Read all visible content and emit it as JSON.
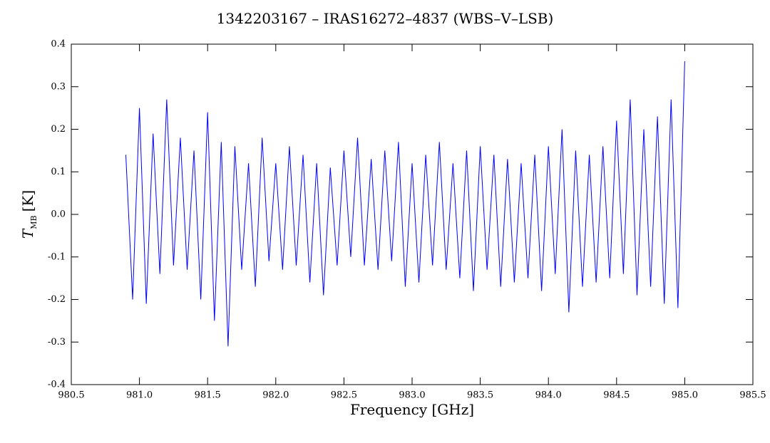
{
  "chart_data": {
    "type": "line",
    "title": "1342203167 – IRAS16272–4837 (WBS–V–LSB)",
    "x_label": "Frequency [GHz]",
    "y_label": {
      "symbol": "T",
      "subscript": "MB",
      "unit": "[K]"
    },
    "xlim": [
      980.5,
      985.5
    ],
    "xticks": [
      980.5,
      {
        "value": 981,
        "label": "981.0"
      },
      981.5,
      {
        "value": 982,
        "label": "982.0"
      },
      982.5,
      {
        "value": 983,
        "label": "983.0"
      },
      983.5,
      {
        "value": 984,
        "label": "984.0"
      },
      984.5,
      {
        "value": 985,
        "label": "985.0"
      },
      985.5
    ],
    "ylim": [
      -0.4,
      0.4
    ],
    "yticks": [
      -0.4,
      -0.3,
      -0.2,
      -0.1,
      {
        "value": 0,
        "label": "0.0"
      },
      0.1,
      0.2,
      0.3,
      0.4
    ],
    "x": [
      980.9,
      980.95,
      981.0,
      981.05,
      981.1,
      981.15,
      981.2,
      981.25,
      981.3,
      981.35,
      981.4,
      981.45,
      981.5,
      981.55,
      981.6,
      981.65,
      981.7,
      981.75,
      981.8,
      981.85,
      981.9,
      981.95,
      982.0,
      982.05,
      982.1,
      982.15,
      982.2,
      982.25,
      982.3,
      982.35,
      982.4,
      982.45,
      982.5,
      982.55,
      982.6,
      982.65,
      982.7,
      982.75,
      982.8,
      982.85,
      982.9,
      982.95,
      983.0,
      983.05,
      983.1,
      983.15,
      983.2,
      983.25,
      983.3,
      983.35,
      983.4,
      983.45,
      983.5,
      983.55,
      983.6,
      983.65,
      983.7,
      983.75,
      983.8,
      983.85,
      983.9,
      983.95,
      984.0,
      984.05,
      984.1,
      984.15,
      984.2,
      984.25,
      984.3,
      984.35,
      984.4,
      984.45,
      984.5,
      984.55,
      984.6,
      984.65,
      984.7,
      984.75,
      984.8,
      984.85,
      984.9,
      984.95,
      985.0
    ],
    "series": [
      {
        "color": "#0000ff",
        "values": [
          0.14,
          -0.2,
          0.25,
          -0.21,
          0.19,
          -0.14,
          0.27,
          -0.12,
          0.18,
          -0.13,
          0.15,
          -0.2,
          0.24,
          -0.25,
          0.17,
          -0.31,
          0.16,
          -0.13,
          0.12,
          -0.17,
          0.18,
          -0.11,
          0.12,
          -0.13,
          0.16,
          -0.12,
          0.14,
          -0.16,
          0.12,
          -0.19,
          0.11,
          -0.12,
          0.15,
          -0.1,
          0.18,
          -0.12,
          0.13,
          -0.13,
          0.15,
          -0.11,
          0.17,
          -0.17,
          0.12,
          -0.16,
          0.14,
          -0.12,
          0.17,
          -0.13,
          0.12,
          -0.15,
          0.15,
          -0.18,
          0.16,
          -0.13,
          0.14,
          -0.17,
          0.13,
          -0.16,
          0.12,
          -0.15,
          0.14,
          -0.18,
          0.16,
          -0.14,
          0.2,
          -0.23,
          0.15,
          -0.17,
          0.14,
          -0.16,
          0.16,
          -0.15,
          0.22,
          -0.14,
          0.27,
          -0.19,
          0.2,
          -0.17,
          0.23,
          -0.21,
          0.27,
          -0.22,
          0.36
        ]
      }
    ]
  }
}
